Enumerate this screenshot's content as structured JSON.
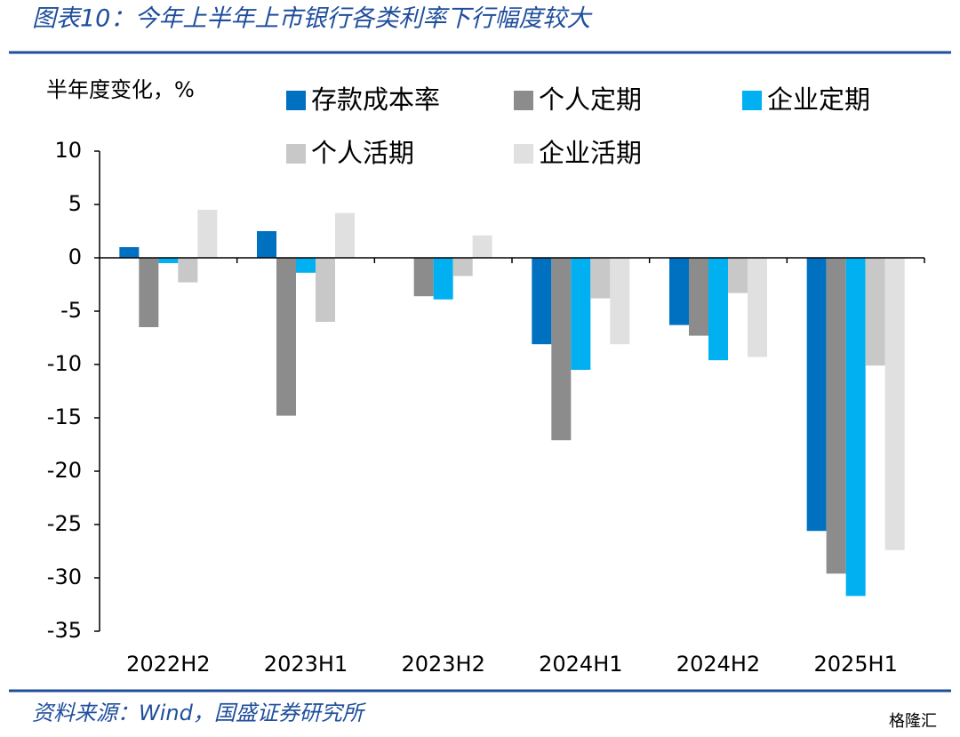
{
  "title": "图表10：今年上半年上市银行各类利率下行幅度较大",
  "source": "资料来源：Wind，国盛证券研究所",
  "watermark": "格隆汇",
  "chart_data": {
    "type": "bar",
    "y_label": "半年度变化，%",
    "categories": [
      "2022H2",
      "2023H1",
      "2023H2",
      "2024H1",
      "2024H2",
      "2025H1"
    ],
    "series": [
      {
        "name": "存款成本率",
        "color": "#0070c0",
        "values": [
          1.0,
          2.5,
          0,
          -8.1,
          -6.3,
          -25.6
        ]
      },
      {
        "name": "个人定期",
        "color": "#8c8c8c",
        "values": [
          -6.5,
          -14.8,
          -3.6,
          -17.1,
          -7.3,
          -29.6
        ]
      },
      {
        "name": "企业定期",
        "color": "#00b0f0",
        "values": [
          -0.5,
          -1.4,
          -3.9,
          -10.5,
          -9.6,
          -31.7
        ]
      },
      {
        "name": "个人活期",
        "color": "#c8c8c8",
        "values": [
          -2.3,
          -6.0,
          -1.7,
          -3.8,
          -3.3,
          -10.1
        ]
      },
      {
        "name": "企业活期",
        "color": "#e0e0e0",
        "values": [
          4.5,
          4.2,
          2.1,
          -8.1,
          -9.3,
          -27.4
        ]
      }
    ],
    "ylim": [
      -35,
      10
    ],
    "yticks": [
      10,
      5,
      0,
      -5,
      -10,
      -15,
      -20,
      -25,
      -30,
      -35
    ]
  }
}
